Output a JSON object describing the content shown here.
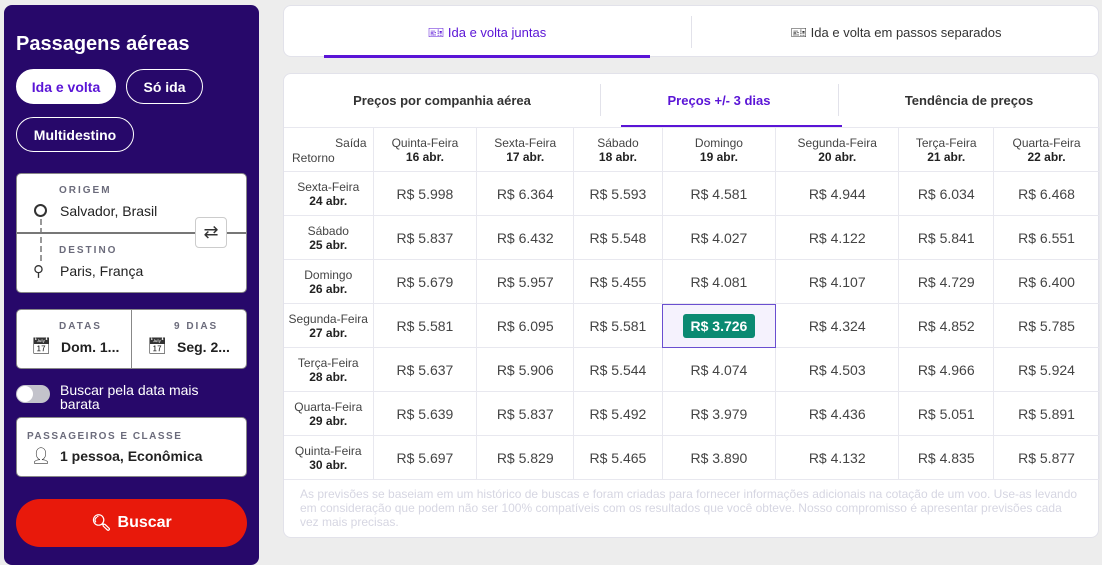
{
  "sidebar": {
    "title": "Passagens aéreas",
    "trip_types": [
      "Ida e volta",
      "Só ida",
      "Multidestino"
    ],
    "origin_label": "ORIGEM",
    "origin": "Salvador, Brasil",
    "dest_label": "DESTINO",
    "dest": "Paris, França",
    "dates_label": "DATAS",
    "date_out": "Dom. 1...",
    "days_label": "9 DIAS",
    "date_back": "Seg. 2...",
    "toggle_label": "Buscar pela data mais barata",
    "pax_label": "PASSAGEIROS E CLASSE",
    "pax": "1 pessoa, Econômica",
    "search": "Buscar"
  },
  "top_tabs": [
    "Ida e volta juntas",
    "Ida e volta em passos separados"
  ],
  "sub_tabs": [
    "Preços por companhia aérea",
    "Preços +/- 3 dias",
    "Tendência de preços"
  ],
  "table": {
    "corner_top": "Saída",
    "corner_bottom": "Retorno",
    "cols": [
      [
        "Quinta-Feira",
        "16 abr."
      ],
      [
        "Sexta-Feira",
        "17 abr."
      ],
      [
        "Sábado",
        "18 abr."
      ],
      [
        "Domingo",
        "19 abr."
      ],
      [
        "Segunda-Feira",
        "20 abr."
      ],
      [
        "Terça-Feira",
        "21 abr."
      ],
      [
        "Quarta-Feira",
        "22 abr."
      ]
    ],
    "rows": [
      {
        "day": "Sexta-Feira",
        "date": "24 abr.",
        "prices": [
          "R$ 5.998",
          "R$ 6.364",
          "R$ 5.593",
          "R$ 4.581",
          "R$ 4.944",
          "R$ 6.034",
          "R$ 6.468"
        ]
      },
      {
        "day": "Sábado",
        "date": "25 abr.",
        "prices": [
          "R$ 5.837",
          "R$ 6.432",
          "R$ 5.548",
          "R$ 4.027",
          "R$ 4.122",
          "R$ 5.841",
          "R$ 6.551"
        ]
      },
      {
        "day": "Domingo",
        "date": "26 abr.",
        "prices": [
          "R$ 5.679",
          "R$ 5.957",
          "R$ 5.455",
          "R$ 4.081",
          "R$ 4.107",
          "R$ 4.729",
          "R$ 6.400"
        ]
      },
      {
        "day": "Segunda-Feira",
        "date": "27 abr.",
        "prices": [
          "R$ 5.581",
          "R$ 6.095",
          "R$ 5.581",
          "R$ 3.726",
          "R$ 4.324",
          "R$ 4.852",
          "R$ 5.785"
        ]
      },
      {
        "day": "Terça-Feira",
        "date": "28 abr.",
        "prices": [
          "R$ 5.637",
          "R$ 5.906",
          "R$ 5.544",
          "R$ 4.074",
          "R$ 4.503",
          "R$ 4.966",
          "R$ 5.924"
        ]
      },
      {
        "day": "Quarta-Feira",
        "date": "29 abr.",
        "prices": [
          "R$ 5.639",
          "R$ 5.837",
          "R$ 5.492",
          "R$ 3.979",
          "R$ 4.436",
          "R$ 5.051",
          "R$ 5.891"
        ]
      },
      {
        "day": "Quinta-Feira",
        "date": "30 abr.",
        "prices": [
          "R$ 5.697",
          "R$ 5.829",
          "R$ 5.465",
          "R$ 3.890",
          "R$ 4.132",
          "R$ 4.835",
          "R$ 5.877"
        ]
      }
    ]
  },
  "note": "As previsões se baseiam em um histórico de buscas e foram criadas para fornecer informações adicionais na cotação de um voo. Use-as levando em consideração que podem não ser 100% compatíveis com os resultados que você obteve. Nosso compromisso é apresentar previsões cada vez mais precisas."
}
